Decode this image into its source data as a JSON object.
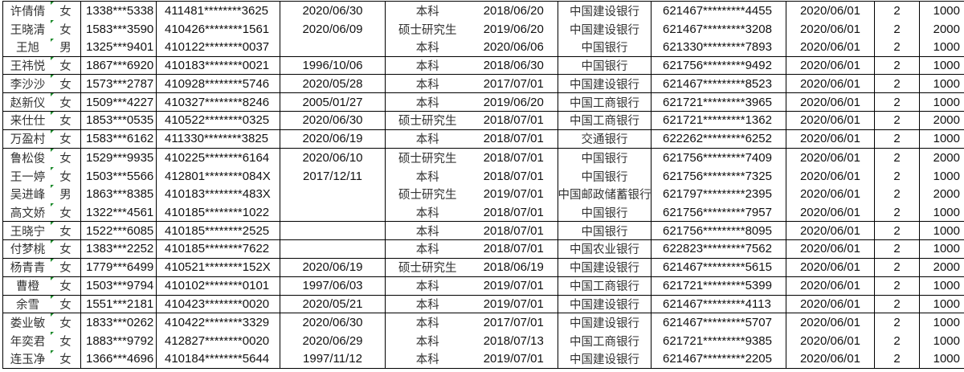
{
  "sheet": {
    "error_marker_color": "#1a8a2a",
    "rows": [
      {
        "name": "许倩倩",
        "gender": "女",
        "phone": "1338***5338",
        "id": "411481********3625",
        "date1": "2020/06/30",
        "degree": "本科",
        "grad": "2018/06/20",
        "bank": "中国建设银行",
        "card": "621467*********4455",
        "date2": "2020/06/01",
        "count": "2",
        "amount": "1000"
      },
      {
        "name": "王晓清",
        "gender": "女",
        "phone": "1583***3590",
        "id": "410426********1561",
        "date1": "2020/06/09",
        "degree": "硕士研究生",
        "grad": "2019/06/20",
        "bank": "中国建设银行",
        "card": "621467*********3208",
        "date2": "2020/06/01",
        "count": "2",
        "amount": "2000"
      },
      {
        "name": "王旭",
        "gender": "男",
        "phone": "1325***9401",
        "id": "410122********0037",
        "date1": "",
        "degree": "本科",
        "grad": "2020/06/06",
        "bank": "中国银行",
        "card": "621330*********7893",
        "date2": "2020/06/01",
        "count": "2",
        "amount": "1000"
      },
      {
        "name": "王祎悦",
        "gender": "女",
        "phone": "1867***6920",
        "id": "410183********0021",
        "date1": "1996/10/06",
        "degree": "本科",
        "grad": "2018/06/30",
        "bank": "中国银行",
        "card": "621756*********9492",
        "date2": "2020/06/01",
        "count": "2",
        "amount": "1000"
      },
      {
        "name": "李沙沙",
        "gender": "女",
        "phone": "1573***2787",
        "id": "410928********5746",
        "date1": "2020/05/28",
        "degree": "本科",
        "grad": "2017/07/01",
        "bank": "中国建设银行",
        "card": "621467*********8523",
        "date2": "2020/06/01",
        "count": "2",
        "amount": "1000"
      },
      {
        "name": "赵新仪",
        "gender": "女",
        "phone": "1509***4227",
        "id": "410327********8246",
        "date1": "2005/01/27",
        "degree": "本科",
        "grad": "2019/06/20",
        "bank": "中国工商银行",
        "card": "621721*********3965",
        "date2": "2020/06/01",
        "count": "2",
        "amount": "1000"
      },
      {
        "name": "来仕仕",
        "gender": "女",
        "phone": "1853***0535",
        "id": "410522********0325",
        "date1": "2020/06/30",
        "degree": "硕士研究生",
        "grad": "2018/07/01",
        "bank": "中国工商银行",
        "card": "621721*********1362",
        "date2": "2020/06/01",
        "count": "2",
        "amount": "2000"
      },
      {
        "name": "万盈村",
        "gender": "女",
        "phone": "1583***6162",
        "id": "411330********3825",
        "date1": "2020/06/19",
        "degree": "本科",
        "grad": "2018/07/01",
        "bank": "交通银行",
        "card": "622262*********6252",
        "date2": "2020/06/01",
        "count": "2",
        "amount": "1000"
      },
      {
        "name": "鲁松俊",
        "gender": "女",
        "phone": "1529***9935",
        "id": "410225********6164",
        "date1": "2020/06/10",
        "degree": "硕士研究生",
        "grad": "2018/07/01",
        "bank": "中国银行",
        "card": "621756*********7409",
        "date2": "2020/06/01",
        "count": "2",
        "amount": "2000"
      },
      {
        "name": "王一婷",
        "gender": "女",
        "phone": "1503***5566",
        "id": "412801********084X",
        "date1": "2017/12/11",
        "degree": "本科",
        "grad": "2018/07/01",
        "bank": "中国银行",
        "card": "621756*********7325",
        "date2": "2020/06/01",
        "count": "2",
        "amount": "1000"
      },
      {
        "name": "吴进峰",
        "gender": "男",
        "phone": "1863***8385",
        "id": "410183********483X",
        "date1": "",
        "degree": "硕士研究生",
        "grad": "2019/07/01",
        "bank": "中国邮政储蓄银行",
        "card": "621797*********2395",
        "date2": "2020/06/01",
        "count": "2",
        "amount": "2000"
      },
      {
        "name": "高文娇",
        "gender": "女",
        "phone": "1322***4561",
        "id": "410185********1022",
        "date1": "",
        "degree": "本科",
        "grad": "2018/07/01",
        "bank": "中国银行",
        "card": "621756*********7957",
        "date2": "2020/06/01",
        "count": "2",
        "amount": "1000"
      },
      {
        "name": "王晓宁",
        "gender": "女",
        "phone": "1522***6085",
        "id": "410185********2525",
        "date1": "",
        "degree": "本科",
        "grad": "2018/07/01",
        "bank": "中国银行",
        "card": "621756*********8095",
        "date2": "2020/06/01",
        "count": "2",
        "amount": "1000"
      },
      {
        "name": "付梦桃",
        "gender": "女",
        "phone": "1383***2252",
        "id": "410185********7622",
        "date1": "",
        "degree": "本科",
        "grad": "2018/07/01",
        "bank": "中国农业银行",
        "card": "622823*********7562",
        "date2": "2020/06/01",
        "count": "2",
        "amount": "1000"
      },
      {
        "name": "杨青青",
        "gender": "女",
        "phone": "1779***6499",
        "id": "410521********152X",
        "date1": "2020/06/19",
        "degree": "硕士研究生",
        "grad": "2018/06/19",
        "bank": "中国建设银行",
        "card": "621467*********5615",
        "date2": "2020/06/01",
        "count": "2",
        "amount": "2000"
      },
      {
        "name": "曹橙",
        "gender": "女",
        "phone": "1503***9794",
        "id": "410102********0101",
        "date1": "1997/06/03",
        "degree": "本科",
        "grad": "2019/07/01",
        "bank": "中国工商银行",
        "card": "621721*********5399",
        "date2": "2020/06/01",
        "count": "2",
        "amount": "1000"
      },
      {
        "name": "余雪",
        "gender": "女",
        "phone": "1551***2181",
        "id": "410423********0020",
        "date1": "2020/05/21",
        "degree": "本科",
        "grad": "2019/07/01",
        "bank": "中国建设银行",
        "card": "621467*********4113",
        "date2": "2020/06/01",
        "count": "2",
        "amount": "1000"
      },
      {
        "name": "娄业敏",
        "gender": "女",
        "phone": "1833***0262",
        "id": "410422********3329",
        "date1": "2020/06/30",
        "degree": "本科",
        "grad": "2017/07/01",
        "bank": "中国建设银行",
        "card": "621467*********5707",
        "date2": "2020/06/01",
        "count": "2",
        "amount": "1000"
      },
      {
        "name": "年奕君",
        "gender": "女",
        "phone": "1883***9792",
        "id": "412827********0020",
        "date1": "2020/06/29",
        "degree": "本科",
        "grad": "2018/07/13",
        "bank": "中国工商银行",
        "card": "621721*********9385",
        "date2": "2020/06/01",
        "count": "2",
        "amount": "1000"
      },
      {
        "name": "连玉净",
        "gender": "女",
        "phone": "1366***4696",
        "id": "410184********5644",
        "date1": "1997/11/12",
        "degree": "本科",
        "grad": "2019/07/01",
        "bank": "中国建设银行",
        "card": "621467*********2205",
        "date2": "2020/06/01",
        "count": "2",
        "amount": "1000"
      }
    ]
  }
}
